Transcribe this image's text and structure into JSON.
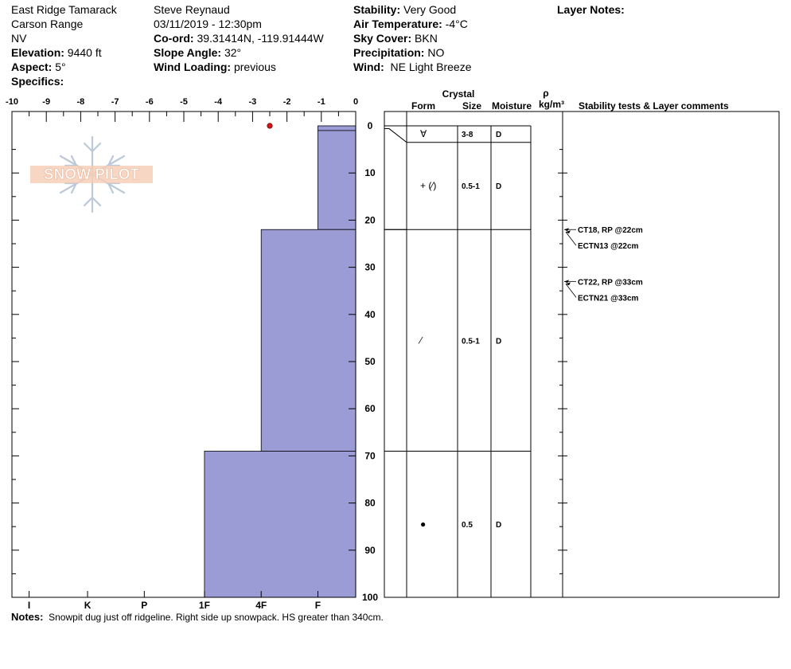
{
  "header": {
    "col1": {
      "location": "East Ridge Tamarack",
      "range": "Carson Range",
      "state": "NV",
      "elevation_label": "Elevation:",
      "elevation": "9440 ft",
      "aspect_label": "Aspect:",
      "aspect": "5°",
      "specifics_label": "Specifics:"
    },
    "col2": {
      "observer": "Steve Reynaud",
      "datetime": "03/11/2019 - 12:30pm",
      "coord_label": "Co-ord:",
      "coord": "39.31414N, -119.91444W",
      "slope_label": "Slope Angle:",
      "slope": "32°",
      "wind_loading_label": "Wind Loading:",
      "wind_loading": "previous"
    },
    "col3": {
      "stability_label": "Stability:",
      "stability": "Very Good",
      "air_temp_label": "Air Temperature:",
      "air_temp": "-4°C",
      "sky_label": "Sky Cover:",
      "sky": "BKN",
      "precip_label": "Precipitation:",
      "precip": "NO",
      "wind_label": "Wind:",
      "wind": "NE Light Breeze"
    },
    "col4": {
      "layer_notes_label": "Layer Notes:"
    }
  },
  "logo_text": "SNOW PILOT",
  "notes": {
    "label": "Notes:",
    "text": "Snowpit dug just off ridgeline.  Right side up snowpack.  HS greater than 340cm."
  },
  "table_headers": {
    "crystal": "Crystal",
    "form": "Form",
    "size": "Size",
    "moisture": "Moisture",
    "rho": "ρ",
    "density_unit": "kg/m³",
    "comments": "Stability tests & Layer comments"
  },
  "colors": {
    "hardness_fill": "#9b9bd6",
    "temp_marker": "#d01818",
    "grid": "#000000"
  },
  "chart_data": {
    "type": "snow-profile",
    "temperature_axis": {
      "ticks": [
        "-10",
        "-9",
        "-8",
        "-7",
        "-6",
        "-5",
        "-4",
        "-3",
        "-2",
        "-1",
        "0"
      ],
      "range": [
        -10,
        0
      ],
      "unit": "°C"
    },
    "depth_axis": {
      "ticks": [
        "0",
        "10",
        "20",
        "30",
        "40",
        "50",
        "60",
        "70",
        "80",
        "90",
        "100"
      ],
      "range": [
        0,
        100
      ],
      "unit": "cm"
    },
    "hardness_axis": {
      "labels": [
        "I",
        "K",
        "P",
        "1F",
        "4F",
        "F"
      ]
    },
    "hardness_profile": [
      {
        "top": 0,
        "bottom": 1,
        "hardness": "F",
        "x": -1.1
      },
      {
        "top": 1,
        "bottom": 22,
        "hardness": "F",
        "x": -1.1
      },
      {
        "top": 22,
        "bottom": 69,
        "hardness": "4F",
        "x": -2.75
      },
      {
        "top": 69,
        "bottom": 100,
        "hardness": "1F",
        "x": -4.4
      }
    ],
    "temperature_points": [
      {
        "depth": 0,
        "temp": -2.5
      }
    ],
    "layers": [
      {
        "top": 0,
        "bottom": 3.5,
        "form": "∀",
        "size": "3-8",
        "moisture": "D",
        "label_depth": 1.7
      },
      {
        "top": 3.5,
        "bottom": 22,
        "form": "+ (⁄)",
        "size": "0.5-1",
        "moisture": "D",
        "label_depth": 12.7
      },
      {
        "top": 22,
        "bottom": 69,
        "form": "⁄",
        "size": "0.5-1",
        "moisture": "D",
        "label_depth": 45.5
      },
      {
        "top": 69,
        "bottom": 100,
        "form": "●",
        "size": "0.5",
        "moisture": "D",
        "label_depth": 84.5
      }
    ],
    "stability_tests": [
      {
        "text": "CT18, RP @22cm",
        "depth": 22
      },
      {
        "text": "ECTN13 @22cm",
        "depth": 22
      },
      {
        "text": "CT22, RP @33cm",
        "depth": 33
      },
      {
        "text": "ECTN21 @33cm",
        "depth": 33
      }
    ]
  }
}
